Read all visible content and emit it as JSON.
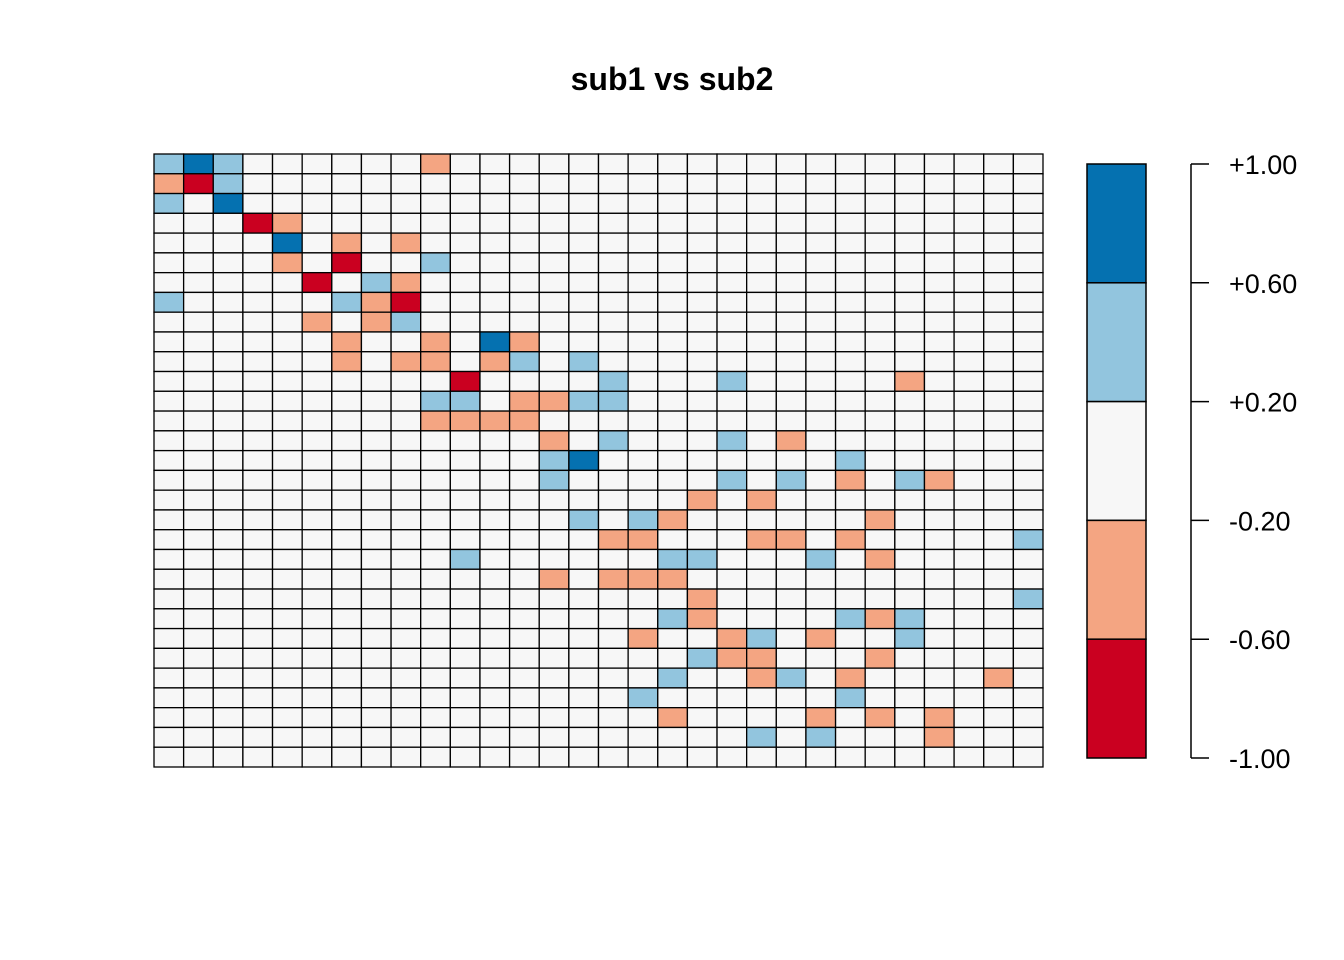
{
  "chart_data": {
    "type": "heatmap",
    "title": "sub1 vs sub2",
    "rows": 31,
    "cols": 30,
    "value_range": [
      -1.0,
      1.0
    ],
    "color_bins": [
      {
        "min": -1.0,
        "max": -0.6,
        "color": "#ca0020"
      },
      {
        "min": -0.6,
        "max": -0.2,
        "color": "#f4a582"
      },
      {
        "min": -0.2,
        "max": 0.2,
        "color": "#f7f7f7"
      },
      {
        "min": 0.2,
        "max": 0.6,
        "color": "#92c5de"
      },
      {
        "min": 0.6,
        "max": 1.0,
        "color": "#0571b0"
      }
    ],
    "legend_ticks": [
      "+1.00",
      "+0.60",
      "+0.20",
      "-0.20",
      "-0.60",
      "-1.00"
    ],
    "legend_placement": "right",
    "cell_border_color": "#000000",
    "cells": [
      {
        "r": 0,
        "c": 0,
        "v": 0.4
      },
      {
        "r": 0,
        "c": 1,
        "v": 0.8
      },
      {
        "r": 0,
        "c": 2,
        "v": 0.4
      },
      {
        "r": 0,
        "c": 9,
        "v": -0.4
      },
      {
        "r": 1,
        "c": 0,
        "v": -0.4
      },
      {
        "r": 1,
        "c": 1,
        "v": -0.8
      },
      {
        "r": 1,
        "c": 2,
        "v": 0.4
      },
      {
        "r": 2,
        "c": 0,
        "v": 0.4
      },
      {
        "r": 2,
        "c": 2,
        "v": 0.8
      },
      {
        "r": 3,
        "c": 3,
        "v": -0.8
      },
      {
        "r": 3,
        "c": 4,
        "v": -0.4
      },
      {
        "r": 4,
        "c": 4,
        "v": 0.8
      },
      {
        "r": 4,
        "c": 6,
        "v": -0.4
      },
      {
        "r": 4,
        "c": 8,
        "v": -0.4
      },
      {
        "r": 5,
        "c": 4,
        "v": -0.4
      },
      {
        "r": 5,
        "c": 6,
        "v": -0.8
      },
      {
        "r": 5,
        "c": 9,
        "v": 0.4
      },
      {
        "r": 6,
        "c": 5,
        "v": -0.8
      },
      {
        "r": 6,
        "c": 7,
        "v": 0.4
      },
      {
        "r": 6,
        "c": 8,
        "v": -0.4
      },
      {
        "r": 7,
        "c": 0,
        "v": 0.4
      },
      {
        "r": 7,
        "c": 6,
        "v": 0.4
      },
      {
        "r": 7,
        "c": 7,
        "v": -0.4
      },
      {
        "r": 7,
        "c": 8,
        "v": -0.8
      },
      {
        "r": 8,
        "c": 5,
        "v": -0.4
      },
      {
        "r": 8,
        "c": 7,
        "v": -0.4
      },
      {
        "r": 8,
        "c": 8,
        "v": 0.4
      },
      {
        "r": 9,
        "c": 6,
        "v": -0.4
      },
      {
        "r": 9,
        "c": 9,
        "v": -0.4
      },
      {
        "r": 9,
        "c": 11,
        "v": 0.8
      },
      {
        "r": 9,
        "c": 12,
        "v": -0.4
      },
      {
        "r": 10,
        "c": 6,
        "v": -0.4
      },
      {
        "r": 10,
        "c": 8,
        "v": -0.4
      },
      {
        "r": 10,
        "c": 9,
        "v": -0.4
      },
      {
        "r": 10,
        "c": 11,
        "v": -0.4
      },
      {
        "r": 10,
        "c": 12,
        "v": 0.4
      },
      {
        "r": 10,
        "c": 14,
        "v": 0.4
      },
      {
        "r": 11,
        "c": 10,
        "v": -0.8
      },
      {
        "r": 11,
        "c": 15,
        "v": 0.4
      },
      {
        "r": 11,
        "c": 19,
        "v": 0.4
      },
      {
        "r": 11,
        "c": 25,
        "v": -0.4
      },
      {
        "r": 12,
        "c": 9,
        "v": 0.4
      },
      {
        "r": 12,
        "c": 10,
        "v": 0.4
      },
      {
        "r": 12,
        "c": 12,
        "v": -0.4
      },
      {
        "r": 12,
        "c": 13,
        "v": -0.4
      },
      {
        "r": 12,
        "c": 14,
        "v": 0.4
      },
      {
        "r": 12,
        "c": 15,
        "v": 0.4
      },
      {
        "r": 13,
        "c": 9,
        "v": -0.4
      },
      {
        "r": 13,
        "c": 10,
        "v": -0.4
      },
      {
        "r": 13,
        "c": 11,
        "v": -0.4
      },
      {
        "r": 13,
        "c": 12,
        "v": -0.4
      },
      {
        "r": 14,
        "c": 13,
        "v": -0.4
      },
      {
        "r": 14,
        "c": 15,
        "v": 0.4
      },
      {
        "r": 14,
        "c": 19,
        "v": 0.4
      },
      {
        "r": 14,
        "c": 21,
        "v": -0.4
      },
      {
        "r": 15,
        "c": 13,
        "v": 0.4
      },
      {
        "r": 15,
        "c": 14,
        "v": 0.8
      },
      {
        "r": 15,
        "c": 23,
        "v": 0.4
      },
      {
        "r": 16,
        "c": 13,
        "v": 0.4
      },
      {
        "r": 16,
        "c": 19,
        "v": 0.4
      },
      {
        "r": 16,
        "c": 21,
        "v": 0.4
      },
      {
        "r": 16,
        "c": 23,
        "v": -0.4
      },
      {
        "r": 16,
        "c": 25,
        "v": 0.4
      },
      {
        "r": 16,
        "c": 26,
        "v": -0.4
      },
      {
        "r": 17,
        "c": 18,
        "v": -0.4
      },
      {
        "r": 17,
        "c": 20,
        "v": -0.4
      },
      {
        "r": 18,
        "c": 14,
        "v": 0.4
      },
      {
        "r": 18,
        "c": 16,
        "v": 0.4
      },
      {
        "r": 18,
        "c": 17,
        "v": -0.4
      },
      {
        "r": 18,
        "c": 24,
        "v": -0.4
      },
      {
        "r": 19,
        "c": 15,
        "v": -0.4
      },
      {
        "r": 19,
        "c": 16,
        "v": -0.4
      },
      {
        "r": 19,
        "c": 20,
        "v": -0.4
      },
      {
        "r": 19,
        "c": 21,
        "v": -0.4
      },
      {
        "r": 19,
        "c": 23,
        "v": -0.4
      },
      {
        "r": 19,
        "c": 29,
        "v": 0.4
      },
      {
        "r": 20,
        "c": 10,
        "v": 0.4
      },
      {
        "r": 20,
        "c": 17,
        "v": 0.4
      },
      {
        "r": 20,
        "c": 18,
        "v": 0.4
      },
      {
        "r": 20,
        "c": 22,
        "v": 0.4
      },
      {
        "r": 20,
        "c": 24,
        "v": -0.4
      },
      {
        "r": 21,
        "c": 13,
        "v": -0.4
      },
      {
        "r": 21,
        "c": 15,
        "v": -0.4
      },
      {
        "r": 21,
        "c": 16,
        "v": -0.4
      },
      {
        "r": 21,
        "c": 17,
        "v": -0.4
      },
      {
        "r": 22,
        "c": 18,
        "v": -0.4
      },
      {
        "r": 22,
        "c": 29,
        "v": 0.4
      },
      {
        "r": 23,
        "c": 17,
        "v": 0.4
      },
      {
        "r": 23,
        "c": 18,
        "v": -0.4
      },
      {
        "r": 23,
        "c": 23,
        "v": 0.4
      },
      {
        "r": 23,
        "c": 24,
        "v": -0.4
      },
      {
        "r": 23,
        "c": 25,
        "v": 0.4
      },
      {
        "r": 24,
        "c": 16,
        "v": -0.4
      },
      {
        "r": 24,
        "c": 19,
        "v": -0.4
      },
      {
        "r": 24,
        "c": 20,
        "v": 0.4
      },
      {
        "r": 24,
        "c": 22,
        "v": -0.4
      },
      {
        "r": 24,
        "c": 25,
        "v": 0.4
      },
      {
        "r": 25,
        "c": 18,
        "v": 0.4
      },
      {
        "r": 25,
        "c": 19,
        "v": -0.4
      },
      {
        "r": 25,
        "c": 20,
        "v": -0.4
      },
      {
        "r": 25,
        "c": 24,
        "v": -0.4
      },
      {
        "r": 26,
        "c": 17,
        "v": 0.4
      },
      {
        "r": 26,
        "c": 20,
        "v": -0.4
      },
      {
        "r": 26,
        "c": 21,
        "v": 0.4
      },
      {
        "r": 26,
        "c": 23,
        "v": -0.4
      },
      {
        "r": 26,
        "c": 28,
        "v": -0.4
      },
      {
        "r": 27,
        "c": 16,
        "v": 0.4
      },
      {
        "r": 27,
        "c": 23,
        "v": 0.4
      },
      {
        "r": 28,
        "c": 17,
        "v": -0.4
      },
      {
        "r": 28,
        "c": 22,
        "v": -0.4
      },
      {
        "r": 28,
        "c": 24,
        "v": -0.4
      },
      {
        "r": 28,
        "c": 26,
        "v": -0.4
      },
      {
        "r": 29,
        "c": 20,
        "v": 0.4
      },
      {
        "r": 29,
        "c": 22,
        "v": 0.4
      },
      {
        "r": 29,
        "c": 26,
        "v": -0.4
      }
    ]
  }
}
